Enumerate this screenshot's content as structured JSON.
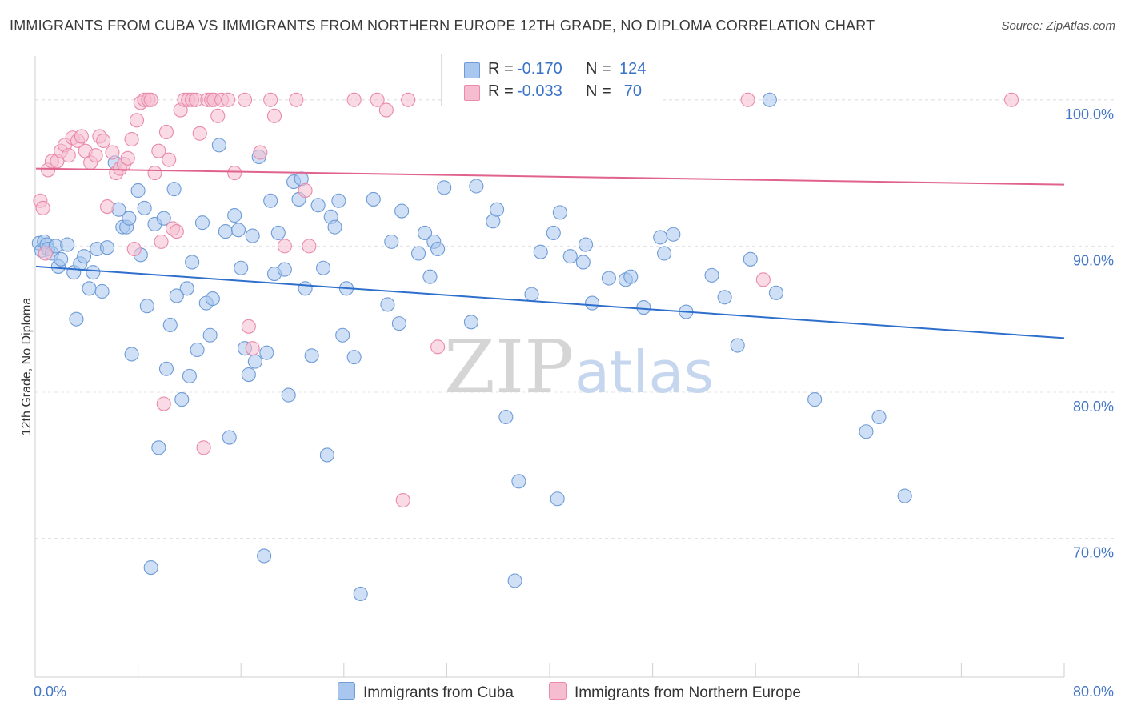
{
  "title": "IMMIGRANTS FROM CUBA VS IMMIGRANTS FROM NORTHERN EUROPE 12TH GRADE, NO DIPLOMA CORRELATION CHART",
  "source": "Source: ZipAtlas.com",
  "watermark": {
    "zip": "ZIP",
    "atlas": "atlas"
  },
  "colors": {
    "cuba_fill": "#a8c6ee",
    "cuba_stroke": "#6f9bd6",
    "cuba_line": "#2f6fcc",
    "neu_fill": "#f6bdd0",
    "neu_stroke": "#e98aab",
    "neu_line": "#e0628e",
    "tick_text": "#4477c8",
    "grid": "#e3e3e3"
  },
  "legend": {
    "rows": [
      {
        "r_label": "R =",
        "r_value": "-0.170",
        "n_label": "N =",
        "n_value": "124"
      },
      {
        "r_label": "R =",
        "r_value": "-0.033",
        "n_label": "N =",
        "n_value": "70"
      }
    ]
  },
  "bottom_legend": [
    "Immigrants from Cuba",
    "Immigrants from Northern Europe"
  ],
  "chart_data": {
    "type": "scatter",
    "title": "IMMIGRANTS FROM CUBA VS IMMIGRANTS FROM NORTHERN EUROPE 12TH GRADE, NO DIPLOMA CORRELATION CHART",
    "xlabel": "",
    "ylabel": "12th Grade, No Diploma",
    "xlim": [
      0,
      80
    ],
    "ylim": [
      60.5,
      103
    ],
    "x_tick_labels": [
      "0.0%",
      "80.0%"
    ],
    "y_ticks": [
      70,
      80,
      90,
      100
    ],
    "y_tick_labels": [
      "70.0%",
      "80.0%",
      "90.0%",
      "100.0%"
    ],
    "grid": "horizontal dashed",
    "legend_position": "top-center",
    "series": [
      {
        "name": "Immigrants from Cuba",
        "r": -0.17,
        "n": 124,
        "trend": {
          "x": [
            0,
            80
          ],
          "y": [
            88.6,
            83.7
          ]
        },
        "points": [
          [
            0.3,
            90.2
          ],
          [
            0.5,
            89.7
          ],
          [
            0.7,
            90.3
          ],
          [
            0.9,
            90.1
          ],
          [
            1.0,
            89.8
          ],
          [
            1.3,
            89.5
          ],
          [
            1.6,
            90.0
          ],
          [
            1.8,
            88.6
          ],
          [
            2.0,
            89.1
          ],
          [
            2.5,
            90.1
          ],
          [
            3.0,
            88.2
          ],
          [
            3.2,
            85.0
          ],
          [
            3.5,
            88.8
          ],
          [
            3.8,
            89.3
          ],
          [
            4.2,
            87.1
          ],
          [
            4.5,
            88.2
          ],
          [
            4.8,
            89.8
          ],
          [
            5.2,
            86.9
          ],
          [
            5.6,
            89.9
          ],
          [
            6.2,
            95.7
          ],
          [
            6.5,
            92.5
          ],
          [
            6.8,
            91.3
          ],
          [
            7.1,
            91.3
          ],
          [
            7.3,
            91.9
          ],
          [
            7.5,
            82.6
          ],
          [
            8.0,
            93.8
          ],
          [
            8.2,
            89.4
          ],
          [
            8.5,
            92.6
          ],
          [
            8.7,
            85.9
          ],
          [
            9.0,
            68.0
          ],
          [
            9.3,
            91.5
          ],
          [
            9.6,
            76.2
          ],
          [
            10.0,
            91.9
          ],
          [
            10.2,
            81.6
          ],
          [
            10.5,
            84.6
          ],
          [
            10.8,
            93.9
          ],
          [
            11.0,
            86.6
          ],
          [
            11.4,
            79.5
          ],
          [
            11.8,
            87.1
          ],
          [
            12.0,
            81.1
          ],
          [
            12.2,
            88.9
          ],
          [
            12.6,
            82.9
          ],
          [
            13.0,
            91.6
          ],
          [
            13.3,
            86.1
          ],
          [
            13.6,
            83.9
          ],
          [
            13.8,
            86.4
          ],
          [
            14.3,
            96.9
          ],
          [
            14.8,
            91.0
          ],
          [
            15.1,
            76.9
          ],
          [
            15.5,
            92.1
          ],
          [
            15.8,
            91.1
          ],
          [
            16.0,
            88.5
          ],
          [
            16.3,
            83.0
          ],
          [
            16.6,
            81.2
          ],
          [
            16.9,
            90.7
          ],
          [
            17.1,
            82.1
          ],
          [
            17.4,
            96.1
          ],
          [
            17.8,
            68.8
          ],
          [
            18.0,
            82.7
          ],
          [
            18.3,
            93.1
          ],
          [
            18.6,
            88.1
          ],
          [
            18.9,
            90.9
          ],
          [
            19.4,
            88.4
          ],
          [
            19.7,
            79.8
          ],
          [
            20.1,
            94.4
          ],
          [
            20.5,
            93.2
          ],
          [
            20.7,
            94.6
          ],
          [
            21.0,
            87.1
          ],
          [
            21.5,
            82.5
          ],
          [
            22.0,
            92.8
          ],
          [
            22.4,
            88.5
          ],
          [
            22.7,
            75.7
          ],
          [
            23.0,
            92.0
          ],
          [
            23.3,
            91.3
          ],
          [
            23.6,
            93.1
          ],
          [
            23.9,
            83.9
          ],
          [
            24.2,
            87.1
          ],
          [
            24.8,
            82.4
          ],
          [
            25.3,
            66.2
          ],
          [
            26.3,
            93.2
          ],
          [
            27.4,
            86.0
          ],
          [
            27.7,
            90.3
          ],
          [
            28.3,
            84.7
          ],
          [
            28.5,
            92.4
          ],
          [
            29.8,
            89.5
          ],
          [
            30.3,
            90.9
          ],
          [
            30.7,
            87.9
          ],
          [
            31.0,
            90.3
          ],
          [
            31.3,
            89.8
          ],
          [
            31.8,
            94.0
          ],
          [
            33.9,
            84.8
          ],
          [
            34.3,
            94.1
          ],
          [
            35.6,
            91.7
          ],
          [
            35.9,
            92.5
          ],
          [
            36.6,
            78.3
          ],
          [
            37.3,
            67.1
          ],
          [
            37.6,
            73.9
          ],
          [
            38.6,
            86.7
          ],
          [
            39.3,
            89.6
          ],
          [
            40.3,
            90.9
          ],
          [
            40.6,
            72.7
          ],
          [
            40.8,
            92.3
          ],
          [
            41.6,
            89.3
          ],
          [
            42.6,
            88.9
          ],
          [
            42.8,
            90.1
          ],
          [
            43.3,
            86.1
          ],
          [
            44.6,
            87.8
          ],
          [
            45.9,
            87.7
          ],
          [
            46.3,
            87.9
          ],
          [
            47.3,
            85.8
          ],
          [
            48.6,
            90.6
          ],
          [
            48.9,
            89.5
          ],
          [
            49.6,
            90.8
          ],
          [
            50.6,
            85.5
          ],
          [
            52.6,
            88.0
          ],
          [
            53.6,
            86.5
          ],
          [
            54.6,
            83.2
          ],
          [
            55.6,
            89.1
          ],
          [
            57.1,
            100.0
          ],
          [
            57.6,
            86.8
          ],
          [
            60.6,
            79.5
          ],
          [
            64.6,
            77.3
          ],
          [
            65.6,
            78.3
          ],
          [
            67.6,
            72.9
          ]
        ]
      },
      {
        "name": "Immigrants from Northern Europe",
        "r": -0.033,
        "n": 70,
        "trend": {
          "x": [
            0,
            80
          ],
          "y": [
            95.3,
            94.2
          ]
        },
        "points": [
          [
            0.4,
            93.1
          ],
          [
            0.6,
            92.6
          ],
          [
            0.8,
            89.5
          ],
          [
            1.0,
            95.2
          ],
          [
            1.3,
            95.8
          ],
          [
            1.7,
            95.8
          ],
          [
            2.0,
            96.5
          ],
          [
            2.3,
            96.9
          ],
          [
            2.6,
            96.2
          ],
          [
            2.9,
            97.4
          ],
          [
            3.3,
            97.2
          ],
          [
            3.6,
            97.5
          ],
          [
            3.9,
            96.5
          ],
          [
            4.3,
            95.7
          ],
          [
            4.7,
            96.2
          ],
          [
            5.0,
            97.5
          ],
          [
            5.3,
            97.2
          ],
          [
            5.6,
            92.7
          ],
          [
            6.0,
            96.4
          ],
          [
            6.3,
            95.0
          ],
          [
            6.6,
            95.3
          ],
          [
            6.9,
            95.6
          ],
          [
            7.2,
            96.0
          ],
          [
            7.5,
            97.3
          ],
          [
            7.7,
            89.8
          ],
          [
            7.9,
            98.6
          ],
          [
            8.2,
            99.8
          ],
          [
            8.5,
            100.0
          ],
          [
            8.8,
            100.0
          ],
          [
            9.0,
            100.0
          ],
          [
            9.3,
            95.0
          ],
          [
            9.6,
            96.5
          ],
          [
            9.8,
            90.3
          ],
          [
            10.0,
            79.2
          ],
          [
            10.2,
            97.8
          ],
          [
            10.4,
            95.9
          ],
          [
            10.7,
            91.2
          ],
          [
            11.0,
            91.0
          ],
          [
            11.3,
            99.3
          ],
          [
            11.6,
            100.0
          ],
          [
            11.9,
            100.0
          ],
          [
            12.2,
            100.0
          ],
          [
            12.5,
            100.0
          ],
          [
            12.8,
            97.7
          ],
          [
            13.1,
            76.2
          ],
          [
            13.4,
            100.0
          ],
          [
            13.7,
            100.0
          ],
          [
            13.9,
            100.0
          ],
          [
            14.2,
            98.9
          ],
          [
            14.5,
            100.0
          ],
          [
            15.0,
            100.0
          ],
          [
            15.5,
            95.0
          ],
          [
            16.3,
            100.0
          ],
          [
            16.6,
            84.5
          ],
          [
            16.9,
            83.0
          ],
          [
            17.5,
            96.4
          ],
          [
            18.3,
            100.0
          ],
          [
            18.6,
            98.9
          ],
          [
            19.4,
            90.0
          ],
          [
            20.3,
            100.0
          ],
          [
            21.0,
            93.8
          ],
          [
            21.3,
            90.0
          ],
          [
            24.8,
            100.0
          ],
          [
            26.6,
            100.0
          ],
          [
            27.3,
            99.3
          ],
          [
            28.6,
            72.6
          ],
          [
            29.0,
            100.0
          ],
          [
            31.3,
            83.1
          ],
          [
            55.4,
            100.0
          ],
          [
            56.6,
            87.7
          ],
          [
            75.9,
            100.0
          ]
        ]
      }
    ]
  }
}
